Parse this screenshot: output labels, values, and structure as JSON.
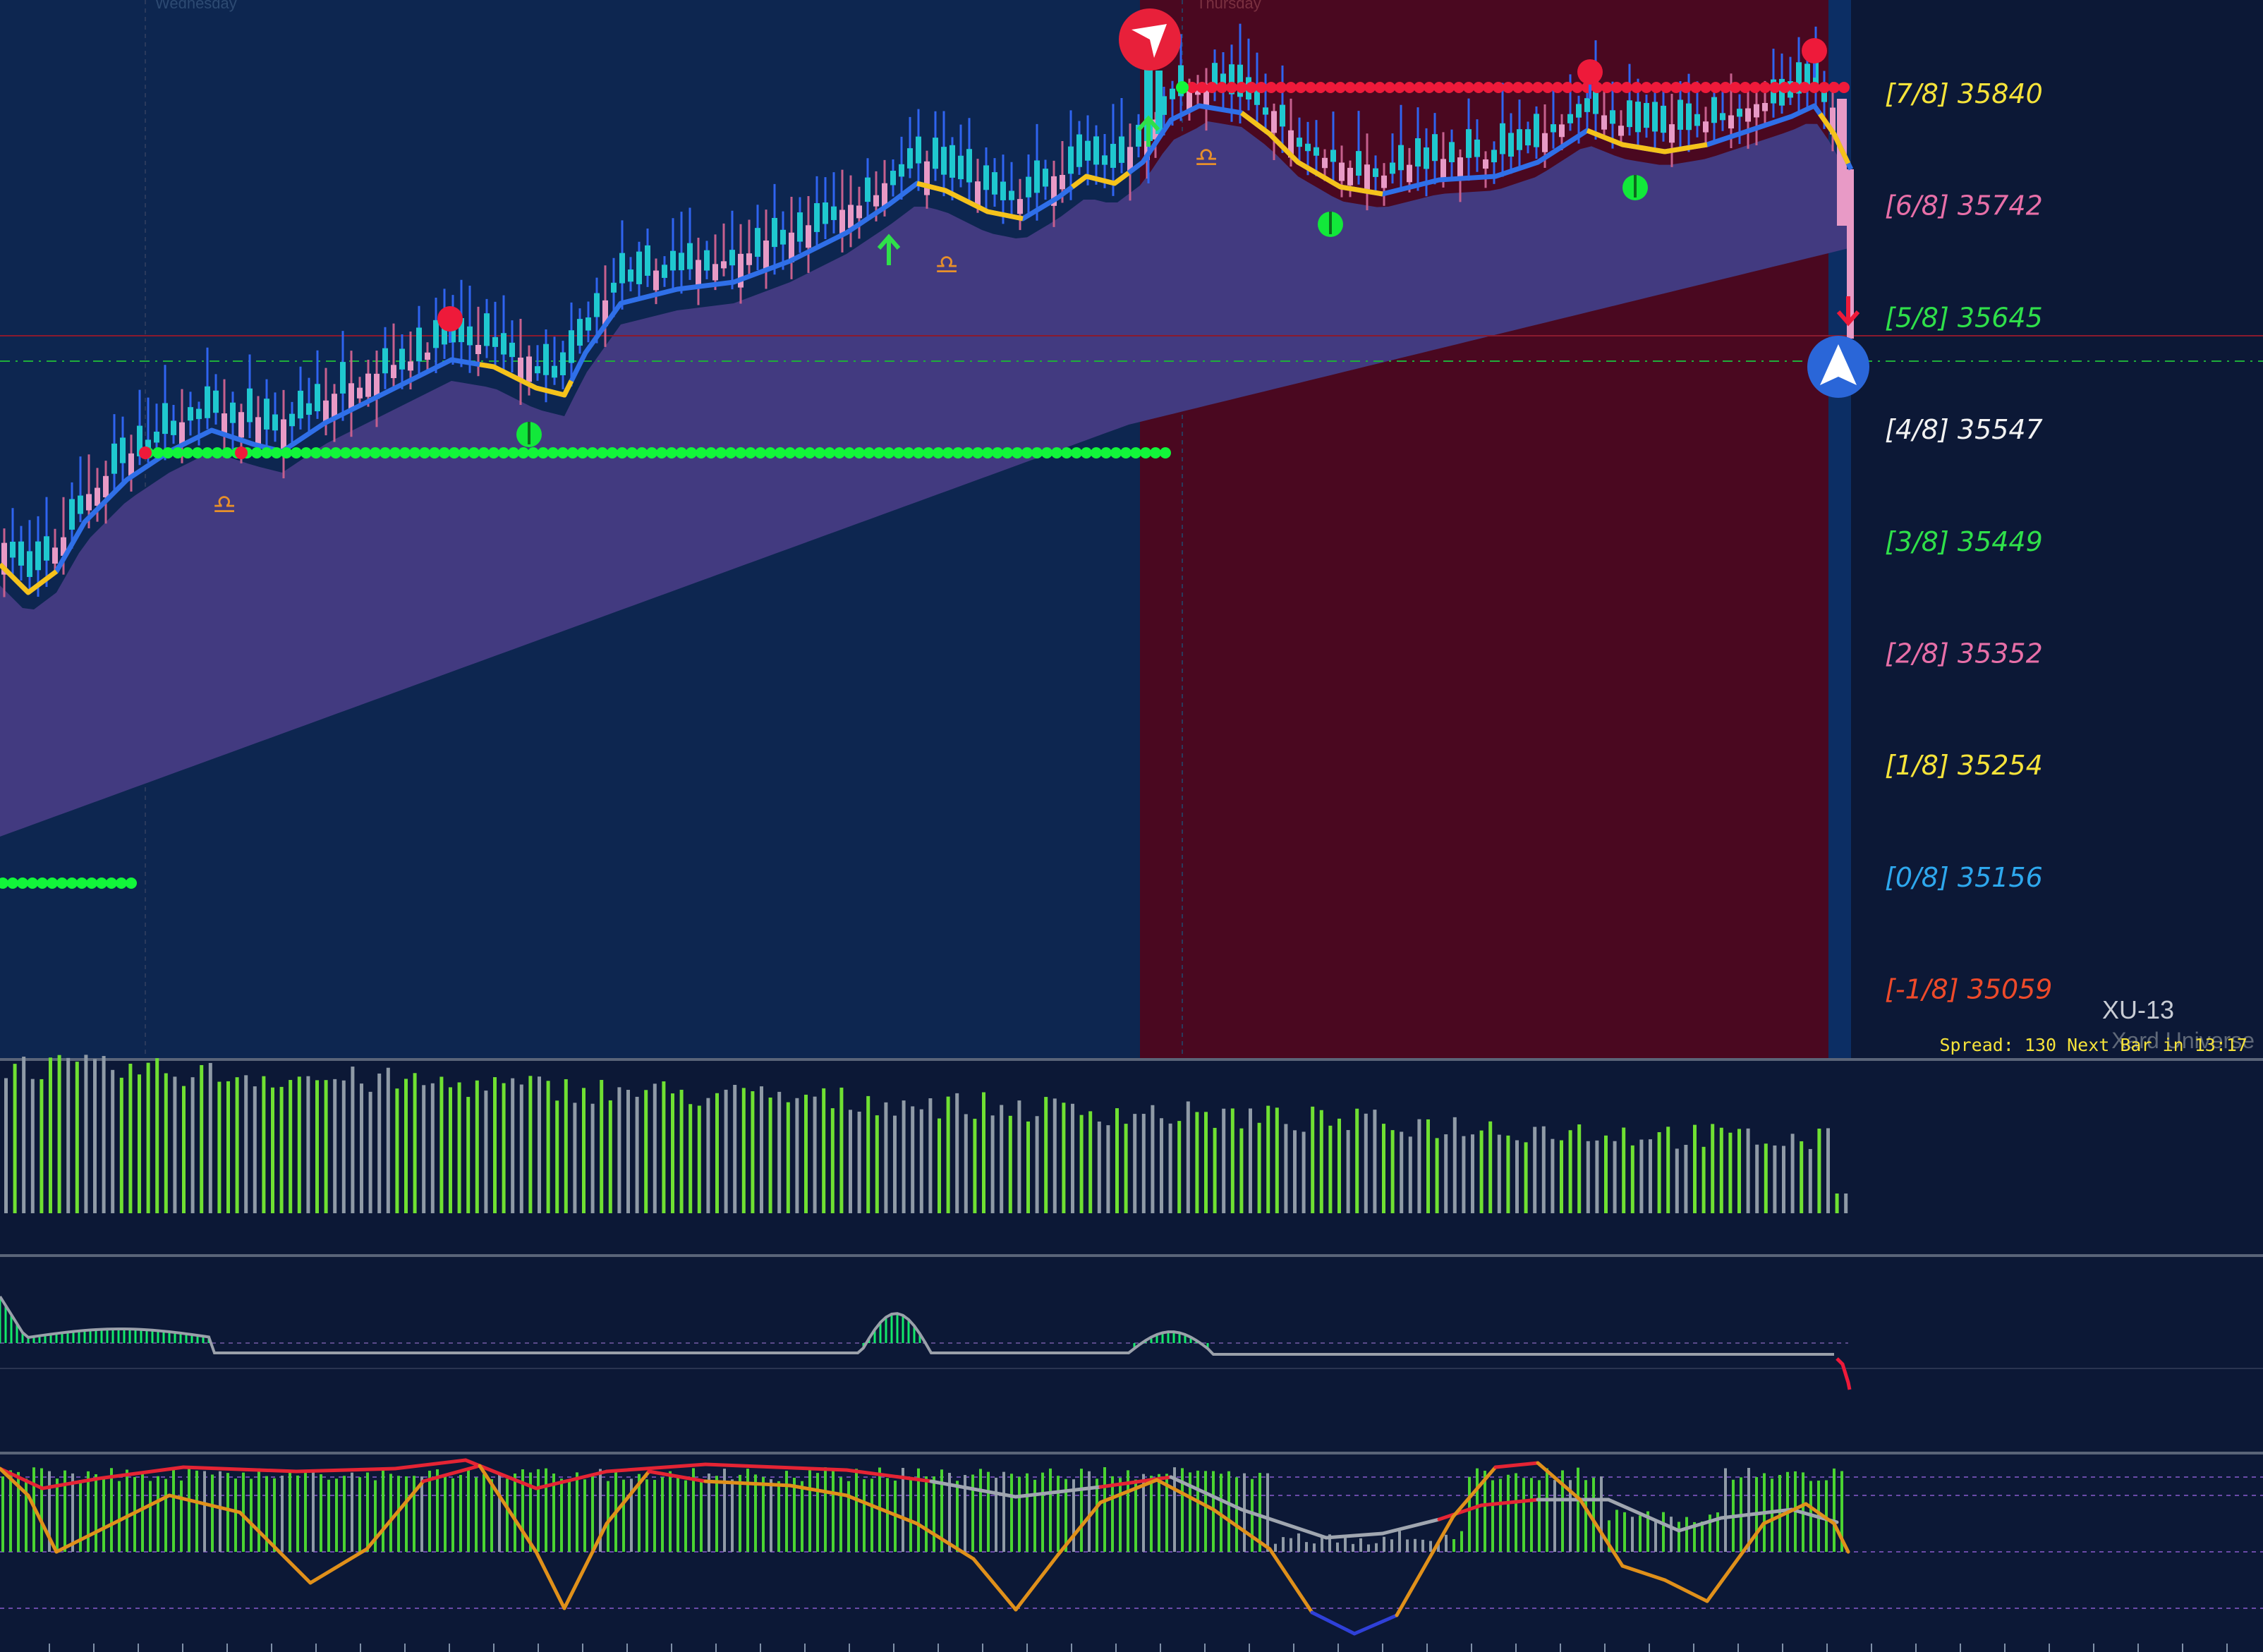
{
  "day_labels": {
    "wednesday": "Wednesday",
    "thursday": "Thursday"
  },
  "murrey_levels": [
    {
      "label": "[7/8] 35840",
      "color": "#f6e33a"
    },
    {
      "label": "[6/8] 35742",
      "color": "#e86fa8"
    },
    {
      "label": "[5/8] 35645",
      "color": "#2fe04a"
    },
    {
      "label": "[4/8] 35547",
      "color": "#f2f2f2"
    },
    {
      "label": "[3/8] 35449",
      "color": "#2fe04a"
    },
    {
      "label": "[2/8] 35352",
      "color": "#e86fa8"
    },
    {
      "label": "[1/8] 35254",
      "color": "#f6e33a"
    },
    {
      "label": "[0/8] 35156",
      "color": "#2ea8ee"
    },
    {
      "label": "[-1/8] 35059",
      "color": "#ee4a2a"
    }
  ],
  "symbol": "XU-13",
  "watermark": "Xard Universe",
  "status_line": "Spread: 130 Next Bar in 13:17",
  "colors": {
    "background": "#0c1836",
    "session_blue": "#0d2650",
    "session_red": "#4a0820",
    "cloud": "#423a80",
    "bull_candle": "#1fc8cf",
    "bear_candle": "#e89ac6",
    "wick_blue": "#2f64f0",
    "ma_blue": "#2f6fe8",
    "ma_yellow": "#f5c21a",
    "support_dots": "#12f53a",
    "resistance_dots": "#ee1a3a",
    "volume_green": "#6fe032",
    "volume_gray": "#8f9aa6",
    "osc_red": "#e52434",
    "osc_orange": "#e0901a"
  },
  "icons": {
    "sell_signal": "sell-arrow-circle-icon",
    "buy_signal": "buy-arrow-circle-icon",
    "up_arrow": "up-arrow-icon",
    "down_arrow": "down-arrow-icon",
    "libra": "libra-symbol-icon"
  },
  "libra_glyph": "♎"
}
